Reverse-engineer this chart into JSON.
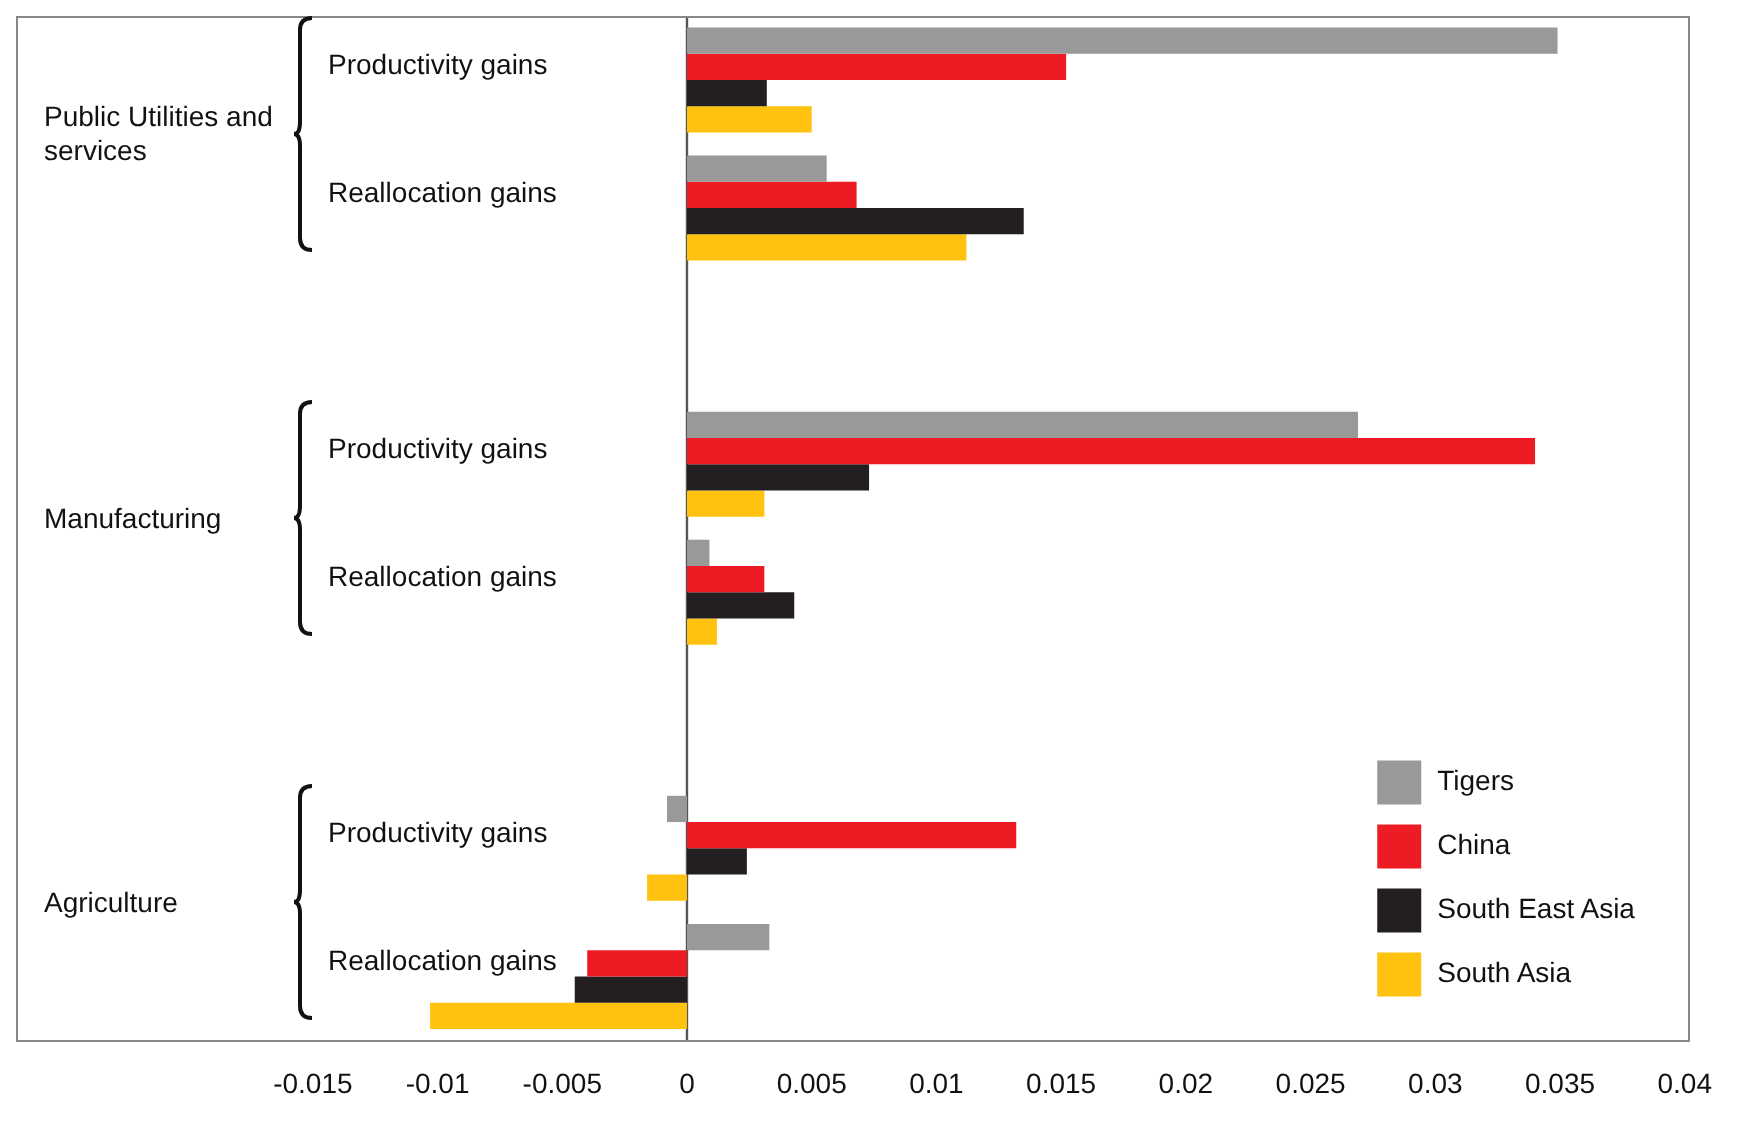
{
  "chart_data": {
    "type": "bar",
    "orientation": "horizontal",
    "categories": [
      "Productivity gains",
      "Reallocation gains",
      null,
      "Productivity gains",
      "Reallocation gains",
      null,
      "Productivity gains",
      "Reallocation gains"
    ],
    "series": [
      {
        "name": "Tigers",
        "color": "#999999",
        "values": [
          0.0349,
          0.0056,
          null,
          0.0269,
          0.0009,
          null,
          -0.0008,
          0.0033
        ]
      },
      {
        "name": "China",
        "color": "#ed1c24",
        "values": [
          0.0152,
          0.0068,
          null,
          0.034,
          0.0031,
          null,
          0.0132,
          -0.004
        ]
      },
      {
        "name": "South East Asia",
        "color": "#231f20",
        "values": [
          0.0032,
          0.0135,
          null,
          0.0073,
          0.0043,
          null,
          0.0024,
          -0.0045
        ]
      },
      {
        "name": "South Asia",
        "color": "#ffc20e",
        "values": [
          0.005,
          0.0112,
          null,
          0.0031,
          0.0012,
          null,
          -0.0016,
          -0.0103
        ]
      }
    ],
    "annotations": [
      "Public Utilities and services",
      "Manufacturing",
      "Agriculture"
    ],
    "xlim": [
      -0.0269,
      0.0401
    ],
    "ref_lines": [
      {
        "axis": "x",
        "value": 0,
        "color": "#555555"
      }
    ],
    "xticks": [
      -0.015,
      -0.01,
      -0.005,
      0,
      0.005,
      0.01,
      0.015,
      0.02,
      0.025,
      0.03,
      0.035,
      0.04
    ],
    "grid": false,
    "legend": "bottom right"
  }
}
